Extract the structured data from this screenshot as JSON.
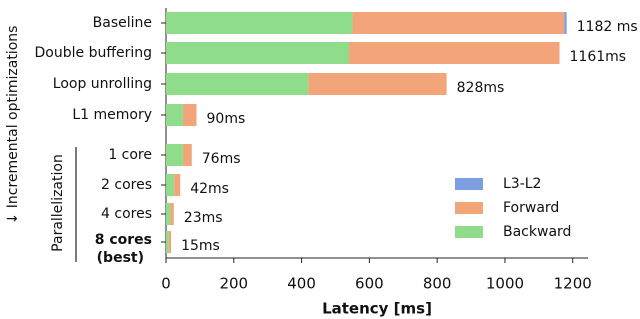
{
  "chart_data": {
    "type": "stacked-barh",
    "categories": [
      "Baseline",
      "Double buffering",
      "Loop unrolling",
      "L1 memory",
      "1 core",
      "2 cores",
      "4 cores",
      "8 cores"
    ],
    "best_note": "(best)",
    "series": [
      {
        "name": "Backward",
        "color": "#8fdc8a",
        "values": [
          550,
          540,
          420,
          50,
          50,
          24,
          13,
          8
        ]
      },
      {
        "name": "Forward",
        "color": "#f3a57a",
        "values": [
          625,
          621,
          408,
          40,
          26,
          18,
          10,
          7
        ]
      },
      {
        "name": "L3-L2",
        "color": "#7b9fe0",
        "values": [
          7,
          0,
          0,
          0,
          0,
          0,
          0,
          0
        ]
      }
    ],
    "totals": [
      1182,
      1161,
      828,
      90,
      76,
      42,
      23,
      15
    ],
    "total_labels": [
      "1182 ms",
      "1161ms",
      "828ms",
      "90ms",
      "76ms",
      "42ms",
      "23ms",
      "15ms"
    ],
    "xlabel": "Latency [ms]",
    "ylabel": "↓ Incremental optimizations",
    "group_label": "Parallelization",
    "xlim": [
      0,
      1245
    ],
    "xticks": [
      0,
      200,
      400,
      600,
      800,
      1000,
      1200
    ],
    "legend": "lower right"
  }
}
